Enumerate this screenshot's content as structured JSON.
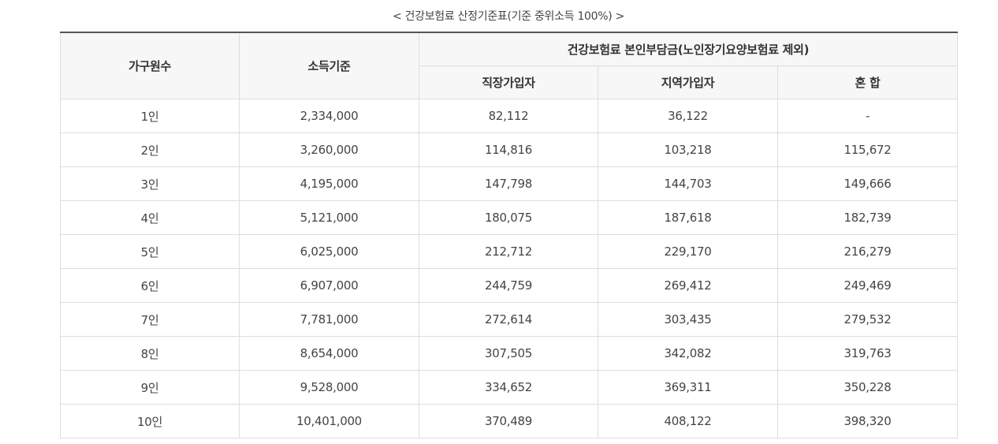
{
  "caption": "< 건강보험료 산정기준표(기준 중위소득 100%) >",
  "header": {
    "household": "가구원수",
    "income": "소득기준",
    "premium_group": "건강보험료 본인부담금(노인장기요양보험료 제외)",
    "employee": "직장가입자",
    "regional": "지역가입자",
    "mixed": "혼 합"
  },
  "rows": [
    {
      "household": "1인",
      "income": "2,334,000",
      "employee": "82,112",
      "regional": "36,122",
      "mixed": "-"
    },
    {
      "household": "2인",
      "income": "3,260,000",
      "employee": "114,816",
      "regional": "103,218",
      "mixed": "115,672"
    },
    {
      "household": "3인",
      "income": "4,195,000",
      "employee": "147,798",
      "regional": "144,703",
      "mixed": "149,666"
    },
    {
      "household": "4인",
      "income": "5,121,000",
      "employee": "180,075",
      "regional": "187,618",
      "mixed": "182,739"
    },
    {
      "household": "5인",
      "income": "6,025,000",
      "employee": "212,712",
      "regional": "229,170",
      "mixed": "216,279"
    },
    {
      "household": "6인",
      "income": "6,907,000",
      "employee": "244,759",
      "regional": "269,412",
      "mixed": "249,469"
    },
    {
      "household": "7인",
      "income": "7,781,000",
      "employee": "272,614",
      "regional": "303,435",
      "mixed": "279,532"
    },
    {
      "household": "8인",
      "income": "8,654,000",
      "employee": "307,505",
      "regional": "342,082",
      "mixed": "319,763"
    },
    {
      "household": "9인",
      "income": "9,528,000",
      "employee": "334,652",
      "regional": "369,311",
      "mixed": "350,228"
    },
    {
      "household": "10인",
      "income": "10,401,000",
      "employee": "370,489",
      "regional": "408,122",
      "mixed": "398,320"
    }
  ]
}
